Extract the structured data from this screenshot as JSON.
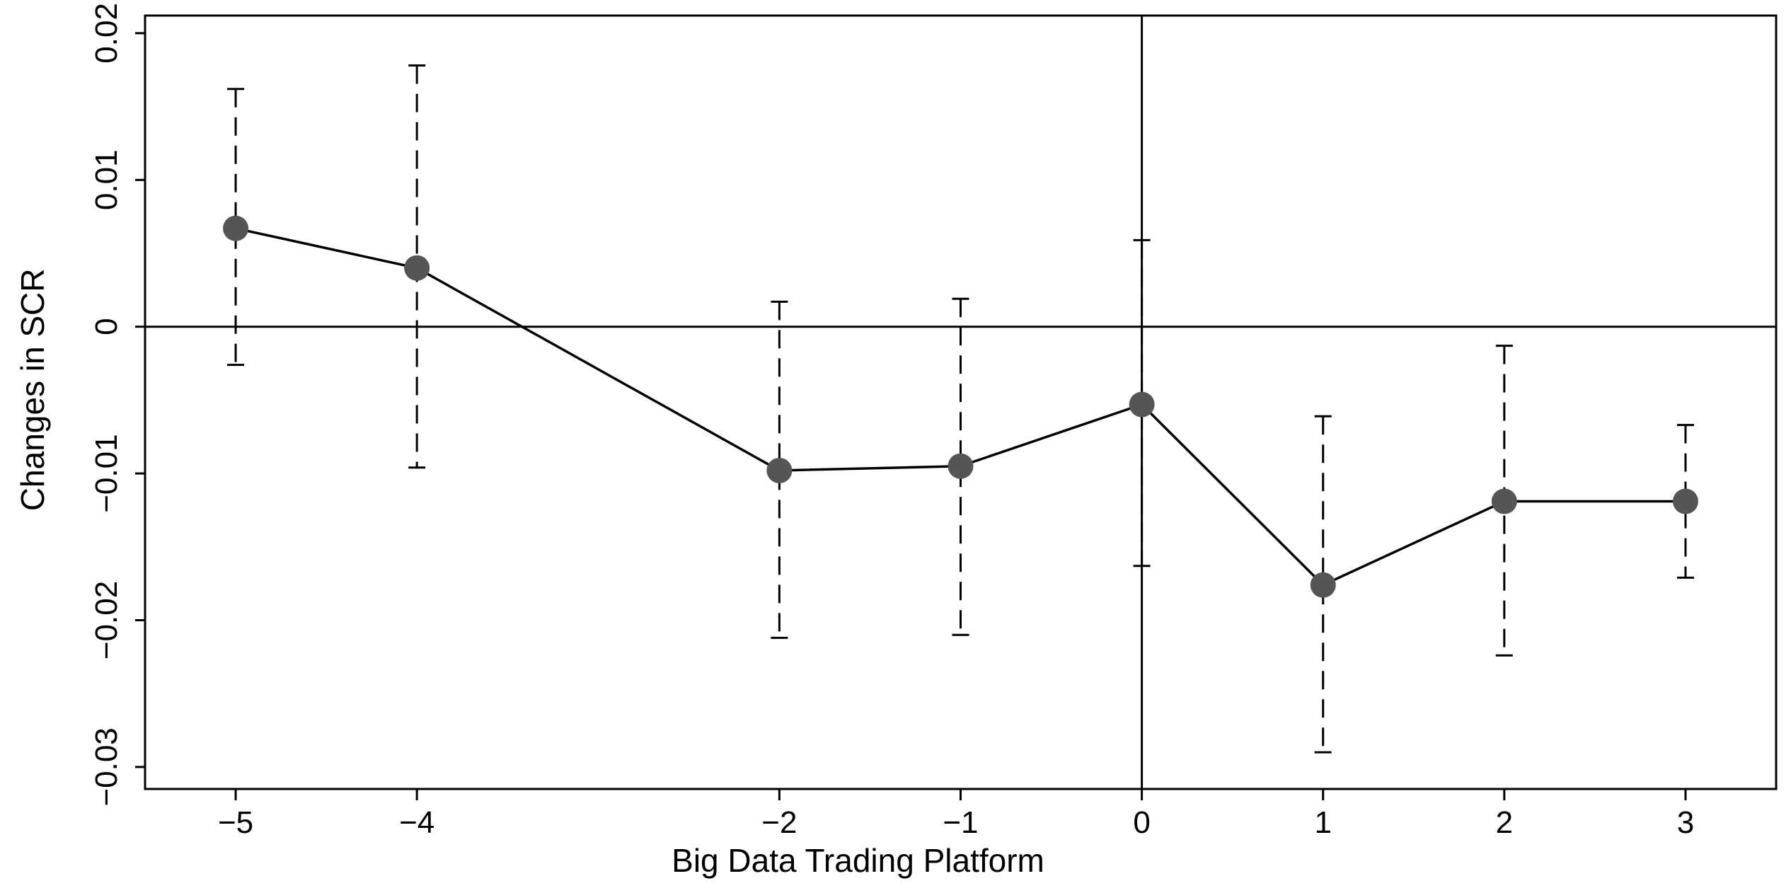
{
  "chart_data": {
    "type": "line",
    "title": "",
    "xlabel": "Big Data Trading Platform",
    "ylabel": "Changes in SCR",
    "xlim": [
      -5.5,
      3.5
    ],
    "ylim": [
      -0.0315,
      0.0212
    ],
    "xticks": [
      -5,
      -4,
      -2,
      -1,
      0,
      1,
      2,
      3
    ],
    "xtick_labels": [
      "−5",
      "−4",
      "−2",
      "−1",
      "0",
      "1",
      "2",
      "3"
    ],
    "yticks": [
      -0.03,
      -0.02,
      -0.01,
      0,
      0.01,
      0.02
    ],
    "ytick_labels": [
      "−0.03",
      "−0.02",
      "−0.01",
      "0",
      "0.01",
      "0.02"
    ],
    "reference_lines": {
      "x": 0,
      "y": 0
    },
    "grid": false,
    "series": [
      {
        "x": [
          -5,
          -4,
          -2,
          -1,
          0,
          1,
          2,
          3
        ],
        "values": [
          0.0067,
          0.004,
          -0.0098,
          -0.0095,
          -0.0053,
          -0.0176,
          -0.0119,
          -0.0119
        ],
        "ci_low": [
          -0.0026,
          -0.0096,
          -0.0212,
          -0.021,
          -0.0163,
          -0.029,
          -0.0224,
          -0.0171
        ],
        "ci_high": [
          0.0162,
          0.0178,
          0.0017,
          0.0019,
          0.0059,
          -0.0061,
          -0.0013,
          -0.0067
        ],
        "color": "#555555"
      }
    ]
  }
}
